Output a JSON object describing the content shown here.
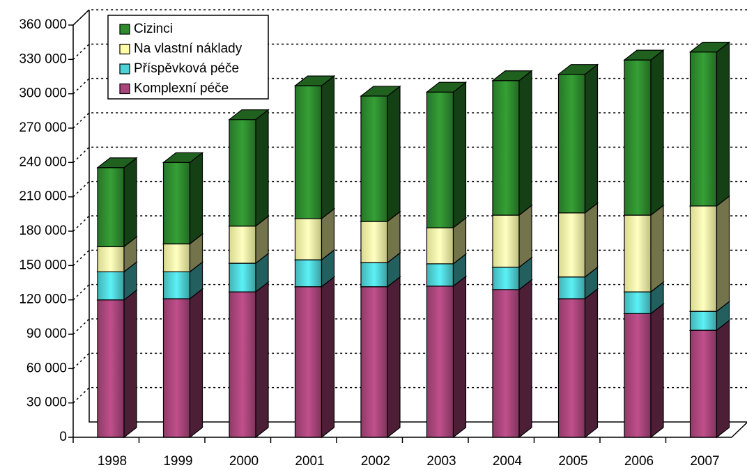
{
  "chart_data": {
    "type": "bar3d_stacked",
    "categories": [
      "1998",
      "1999",
      "2000",
      "2001",
      "2002",
      "2003",
      "2004",
      "2005",
      "2006",
      "2007"
    ],
    "series": [
      {
        "name": "Komplexní péče",
        "color": "#a8457a",
        "values": [
          120000,
          121000,
          127000,
          131500,
          131500,
          132000,
          129000,
          121000,
          108000,
          93500
        ]
      },
      {
        "name": "Příspěvková péče",
        "color": "#4fd2d6",
        "values": [
          24500,
          23500,
          25000,
          23500,
          21000,
          19500,
          19500,
          19000,
          19000,
          16500
        ]
      },
      {
        "name": "Na vlastní náklady",
        "color": "#ffffa8",
        "values": [
          22000,
          24500,
          32500,
          36000,
          36000,
          31500,
          45500,
          56000,
          67000,
          92000
        ]
      },
      {
        "name": "Cizinci",
        "color": "#2e8b2e",
        "values": [
          69000,
          71000,
          93000,
          116000,
          109500,
          118500,
          117500,
          121000,
          135500,
          134500
        ]
      }
    ],
    "ylim": [
      0,
      360000
    ],
    "yticks": [
      0,
      {
        "value": 30000,
        "label": "30 000"
      },
      {
        "value": 60000,
        "label": "60 000"
      },
      {
        "value": 90000,
        "label": "90 000"
      },
      {
        "value": 120000,
        "label": "120 000"
      },
      {
        "value": 150000,
        "label": "150 000"
      },
      {
        "value": 180000,
        "label": "180 000"
      },
      {
        "value": 210000,
        "label": "210 000"
      },
      {
        "value": 240000,
        "label": "240 000"
      },
      {
        "value": 270000,
        "label": "270 000"
      },
      {
        "value": 300000,
        "label": "300 000"
      },
      {
        "value": 330000,
        "label": "330 000"
      },
      {
        "value": 360000,
        "label": "360 000"
      }
    ],
    "grid": true
  }
}
